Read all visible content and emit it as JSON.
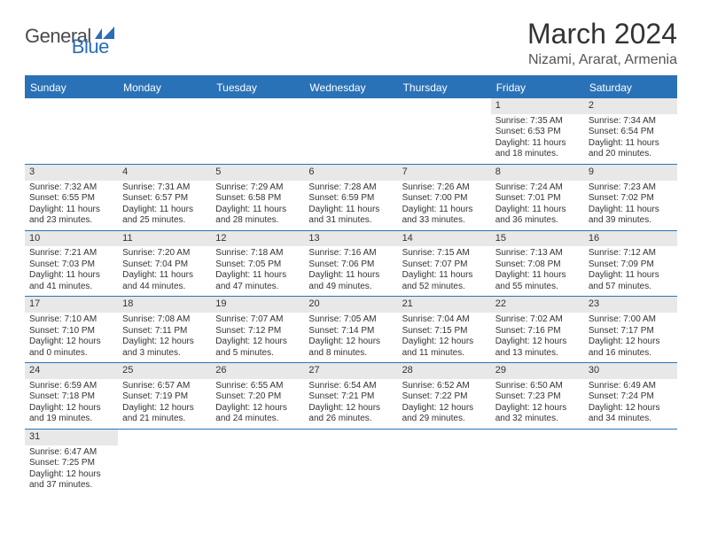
{
  "logo": {
    "part1": "General",
    "part2": "Blue"
  },
  "title": "March 2024",
  "location": "Nizami, Ararat, Armenia",
  "colors": {
    "header_bg": "#2a72b8",
    "header_text": "#ffffff",
    "daynum_bg": "#e8e8e8",
    "border": "#2a72b8",
    "logo_gray": "#4a4a4a",
    "logo_blue": "#2a6db8"
  },
  "day_headers": [
    "Sunday",
    "Monday",
    "Tuesday",
    "Wednesday",
    "Thursday",
    "Friday",
    "Saturday"
  ],
  "weeks": [
    [
      {
        "empty": true
      },
      {
        "empty": true
      },
      {
        "empty": true
      },
      {
        "empty": true
      },
      {
        "empty": true
      },
      {
        "day": "1",
        "sunrise": "Sunrise: 7:35 AM",
        "sunset": "Sunset: 6:53 PM",
        "daylight": "Daylight: 11 hours and 18 minutes."
      },
      {
        "day": "2",
        "sunrise": "Sunrise: 7:34 AM",
        "sunset": "Sunset: 6:54 PM",
        "daylight": "Daylight: 11 hours and 20 minutes."
      }
    ],
    [
      {
        "day": "3",
        "sunrise": "Sunrise: 7:32 AM",
        "sunset": "Sunset: 6:55 PM",
        "daylight": "Daylight: 11 hours and 23 minutes."
      },
      {
        "day": "4",
        "sunrise": "Sunrise: 7:31 AM",
        "sunset": "Sunset: 6:57 PM",
        "daylight": "Daylight: 11 hours and 25 minutes."
      },
      {
        "day": "5",
        "sunrise": "Sunrise: 7:29 AM",
        "sunset": "Sunset: 6:58 PM",
        "daylight": "Daylight: 11 hours and 28 minutes."
      },
      {
        "day": "6",
        "sunrise": "Sunrise: 7:28 AM",
        "sunset": "Sunset: 6:59 PM",
        "daylight": "Daylight: 11 hours and 31 minutes."
      },
      {
        "day": "7",
        "sunrise": "Sunrise: 7:26 AM",
        "sunset": "Sunset: 7:00 PM",
        "daylight": "Daylight: 11 hours and 33 minutes."
      },
      {
        "day": "8",
        "sunrise": "Sunrise: 7:24 AM",
        "sunset": "Sunset: 7:01 PM",
        "daylight": "Daylight: 11 hours and 36 minutes."
      },
      {
        "day": "9",
        "sunrise": "Sunrise: 7:23 AM",
        "sunset": "Sunset: 7:02 PM",
        "daylight": "Daylight: 11 hours and 39 minutes."
      }
    ],
    [
      {
        "day": "10",
        "sunrise": "Sunrise: 7:21 AM",
        "sunset": "Sunset: 7:03 PM",
        "daylight": "Daylight: 11 hours and 41 minutes."
      },
      {
        "day": "11",
        "sunrise": "Sunrise: 7:20 AM",
        "sunset": "Sunset: 7:04 PM",
        "daylight": "Daylight: 11 hours and 44 minutes."
      },
      {
        "day": "12",
        "sunrise": "Sunrise: 7:18 AM",
        "sunset": "Sunset: 7:05 PM",
        "daylight": "Daylight: 11 hours and 47 minutes."
      },
      {
        "day": "13",
        "sunrise": "Sunrise: 7:16 AM",
        "sunset": "Sunset: 7:06 PM",
        "daylight": "Daylight: 11 hours and 49 minutes."
      },
      {
        "day": "14",
        "sunrise": "Sunrise: 7:15 AM",
        "sunset": "Sunset: 7:07 PM",
        "daylight": "Daylight: 11 hours and 52 minutes."
      },
      {
        "day": "15",
        "sunrise": "Sunrise: 7:13 AM",
        "sunset": "Sunset: 7:08 PM",
        "daylight": "Daylight: 11 hours and 55 minutes."
      },
      {
        "day": "16",
        "sunrise": "Sunrise: 7:12 AM",
        "sunset": "Sunset: 7:09 PM",
        "daylight": "Daylight: 11 hours and 57 minutes."
      }
    ],
    [
      {
        "day": "17",
        "sunrise": "Sunrise: 7:10 AM",
        "sunset": "Sunset: 7:10 PM",
        "daylight": "Daylight: 12 hours and 0 minutes."
      },
      {
        "day": "18",
        "sunrise": "Sunrise: 7:08 AM",
        "sunset": "Sunset: 7:11 PM",
        "daylight": "Daylight: 12 hours and 3 minutes."
      },
      {
        "day": "19",
        "sunrise": "Sunrise: 7:07 AM",
        "sunset": "Sunset: 7:12 PM",
        "daylight": "Daylight: 12 hours and 5 minutes."
      },
      {
        "day": "20",
        "sunrise": "Sunrise: 7:05 AM",
        "sunset": "Sunset: 7:14 PM",
        "daylight": "Daylight: 12 hours and 8 minutes."
      },
      {
        "day": "21",
        "sunrise": "Sunrise: 7:04 AM",
        "sunset": "Sunset: 7:15 PM",
        "daylight": "Daylight: 12 hours and 11 minutes."
      },
      {
        "day": "22",
        "sunrise": "Sunrise: 7:02 AM",
        "sunset": "Sunset: 7:16 PM",
        "daylight": "Daylight: 12 hours and 13 minutes."
      },
      {
        "day": "23",
        "sunrise": "Sunrise: 7:00 AM",
        "sunset": "Sunset: 7:17 PM",
        "daylight": "Daylight: 12 hours and 16 minutes."
      }
    ],
    [
      {
        "day": "24",
        "sunrise": "Sunrise: 6:59 AM",
        "sunset": "Sunset: 7:18 PM",
        "daylight": "Daylight: 12 hours and 19 minutes."
      },
      {
        "day": "25",
        "sunrise": "Sunrise: 6:57 AM",
        "sunset": "Sunset: 7:19 PM",
        "daylight": "Daylight: 12 hours and 21 minutes."
      },
      {
        "day": "26",
        "sunrise": "Sunrise: 6:55 AM",
        "sunset": "Sunset: 7:20 PM",
        "daylight": "Daylight: 12 hours and 24 minutes."
      },
      {
        "day": "27",
        "sunrise": "Sunrise: 6:54 AM",
        "sunset": "Sunset: 7:21 PM",
        "daylight": "Daylight: 12 hours and 26 minutes."
      },
      {
        "day": "28",
        "sunrise": "Sunrise: 6:52 AM",
        "sunset": "Sunset: 7:22 PM",
        "daylight": "Daylight: 12 hours and 29 minutes."
      },
      {
        "day": "29",
        "sunrise": "Sunrise: 6:50 AM",
        "sunset": "Sunset: 7:23 PM",
        "daylight": "Daylight: 12 hours and 32 minutes."
      },
      {
        "day": "30",
        "sunrise": "Sunrise: 6:49 AM",
        "sunset": "Sunset: 7:24 PM",
        "daylight": "Daylight: 12 hours and 34 minutes."
      }
    ],
    [
      {
        "day": "31",
        "sunrise": "Sunrise: 6:47 AM",
        "sunset": "Sunset: 7:25 PM",
        "daylight": "Daylight: 12 hours and 37 minutes."
      },
      {
        "empty": true
      },
      {
        "empty": true
      },
      {
        "empty": true
      },
      {
        "empty": true
      },
      {
        "empty": true
      },
      {
        "empty": true
      }
    ]
  ]
}
